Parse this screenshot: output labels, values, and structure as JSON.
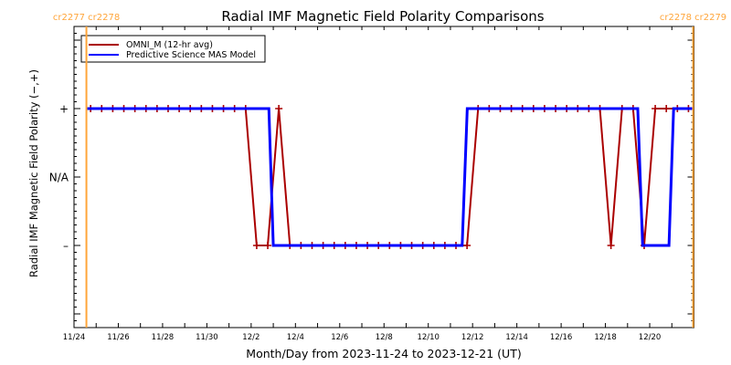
{
  "chart_data": {
    "type": "line",
    "title": "Radial IMF Magnetic Field Polarity Comparisons",
    "xlabel": "Month/Day from 2023-11-24 to 2023-12-21 (UT)",
    "ylabel": "Radial IMF Magnetic Field Polarity (−,+)",
    "x_units": "days since 2023-11-24 00:00 UT",
    "xlim": [
      0,
      28
    ],
    "ylim": [
      -2.2,
      2.2
    ],
    "grid": false,
    "legend_position": "top-left",
    "x_ticks": {
      "values": [
        0,
        2,
        4,
        6,
        8,
        10,
        12,
        14,
        16,
        18,
        20,
        22,
        24,
        26
      ],
      "labels": [
        "11/24",
        "11/26",
        "11/28",
        "11/30",
        "12/2",
        "12/4",
        "12/6",
        "12/8",
        "12/10",
        "12/12",
        "12/14",
        "12/16",
        "12/18",
        "12/20"
      ]
    },
    "x_minor_step": 1,
    "y_ticks": {
      "values": [
        2,
        1,
        0,
        -1,
        -2
      ],
      "labels": [
        "",
        "+",
        "N/A",
        "–",
        ""
      ]
    },
    "y_minor_step": 0.1,
    "series": [
      {
        "name": "OMNI_M (12-hr avg)",
        "color": "#aa0000",
        "marker": "+",
        "x": [
          0.75,
          1.25,
          1.75,
          2.25,
          2.75,
          3.25,
          3.75,
          4.25,
          4.75,
          5.25,
          5.75,
          6.25,
          6.75,
          7.25,
          7.75,
          8.25,
          8.75,
          9.25,
          9.75,
          10.25,
          10.75,
          11.25,
          11.75,
          12.25,
          12.75,
          13.25,
          13.75,
          14.25,
          14.75,
          15.25,
          15.75,
          16.25,
          16.75,
          17.25,
          17.75,
          18.25,
          18.75,
          19.25,
          19.75,
          20.25,
          20.75,
          21.25,
          21.75,
          22.25,
          22.75,
          23.25,
          23.75,
          24.25,
          24.75,
          25.25,
          25.75,
          26.25,
          26.75,
          27.25,
          27.75
        ],
        "y": [
          1,
          1,
          1,
          1,
          1,
          1,
          1,
          1,
          1,
          1,
          1,
          1,
          1,
          1,
          1,
          -1,
          -1,
          1,
          -1,
          -1,
          -1,
          -1,
          -1,
          -1,
          -1,
          -1,
          -1,
          -1,
          -1,
          -1,
          -1,
          -1,
          -1,
          -1,
          -1,
          1,
          1,
          1,
          1,
          1,
          1,
          1,
          1,
          1,
          1,
          1,
          1,
          -1,
          1,
          1,
          -1,
          1,
          1,
          1,
          1
        ]
      },
      {
        "name": "Predictive Science MAS Model",
        "color": "#0000ff",
        "marker": "none",
        "x": [
          0.56,
          8.8,
          9.0,
          17.53,
          17.76,
          25.46,
          25.68,
          26.87,
          27.08,
          27.96
        ],
        "y": [
          1,
          1,
          -1,
          -1,
          1,
          1,
          -1,
          -1,
          1,
          1
        ]
      }
    ],
    "carrington_boundaries": [
      {
        "x": 0.56,
        "label": "cr2277 cr2278"
      },
      {
        "x": 27.96,
        "label": "cr2278 cr2279"
      }
    ],
    "carrington_color": "#ffa53a"
  }
}
